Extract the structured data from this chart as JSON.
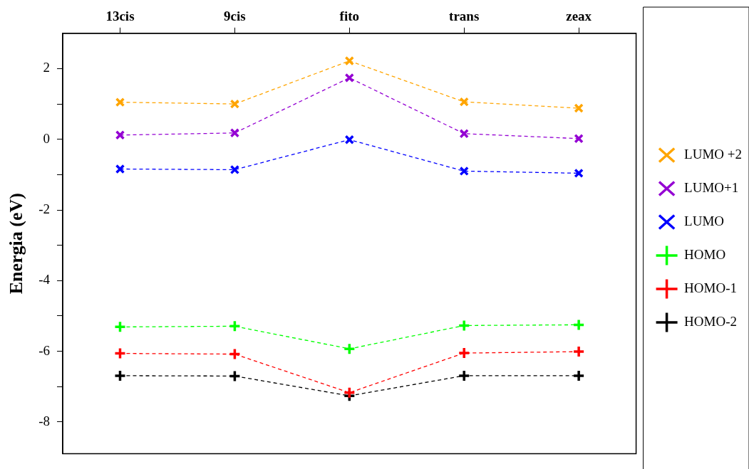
{
  "chart_data": {
    "type": "line",
    "ylabel": "Energia (eV)",
    "categories": [
      "13cis",
      "9cis",
      "fito",
      "trans",
      "zeax"
    ],
    "ylim": [
      -8.9,
      3.0
    ],
    "yticks": [
      -8,
      {
        "value": -7,
        "label": null
      },
      -6,
      {
        "value": -5,
        "label": null
      },
      -4,
      {
        "value": -3,
        "label": null
      },
      -2,
      {
        "value": -1,
        "label": null
      },
      0,
      {
        "value": 1,
        "label": null
      },
      2
    ],
    "grid": false,
    "legend": "right",
    "line_style": "dashed",
    "series": [
      {
        "name": "LUMO +2",
        "color": "#ffa500",
        "marker": "x",
        "values": [
          1.05,
          1.0,
          2.22,
          1.06,
          0.88
        ]
      },
      {
        "name": "LUMO+1",
        "color": "#9400d3",
        "marker": "x",
        "values": [
          0.12,
          0.18,
          1.74,
          0.16,
          0.02
        ]
      },
      {
        "name": "LUMO",
        "color": "#0000ff",
        "marker": "x",
        "values": [
          -0.84,
          -0.86,
          -0.01,
          -0.9,
          -0.96
        ]
      },
      {
        "name": "HOMO",
        "color": "#00ff00",
        "marker": "cross",
        "values": [
          -5.31,
          -5.29,
          -5.93,
          -5.27,
          -5.25
        ]
      },
      {
        "name": "HOMO-1",
        "color": "#ff0000",
        "marker": "cross",
        "values": [
          -6.06,
          -6.08,
          -7.17,
          -6.05,
          -6.01
        ]
      },
      {
        "name": "HOMO-2",
        "color": "#000000",
        "marker": "cross",
        "values": [
          -6.69,
          -6.7,
          -7.26,
          -6.69,
          -6.69
        ]
      }
    ]
  }
}
